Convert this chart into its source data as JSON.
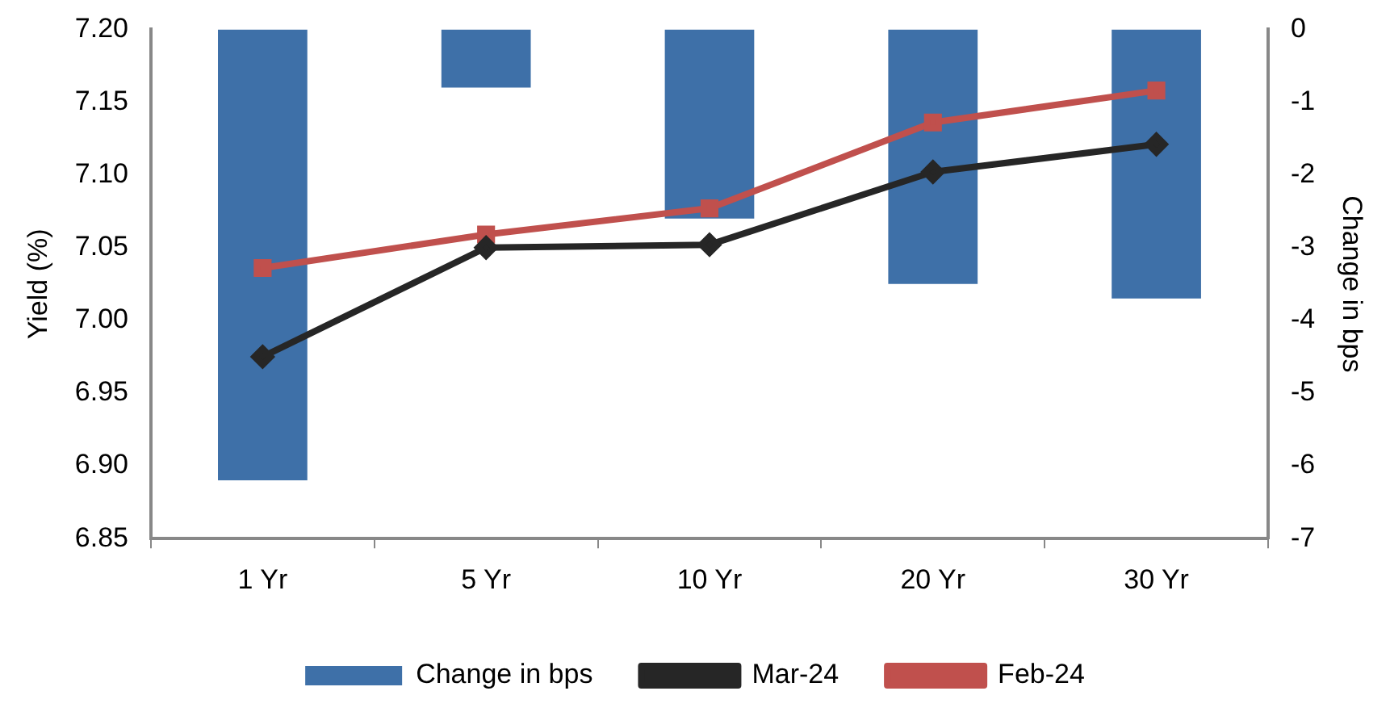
{
  "chart_data": {
    "type": "bar",
    "categories": [
      "1 Yr",
      "5 Yr",
      "10 Yr",
      "20 Yr",
      "30 Yr"
    ],
    "ylabel": "Yield (%)",
    "y2label": "Change in bps",
    "series": [
      {
        "name": "Change in bps",
        "axis": "y2",
        "color": "#3e70a8",
        "values": [
          -6.2,
          -0.8,
          -2.6,
          -3.5,
          -3.7
        ]
      },
      {
        "name": "Mar-24",
        "type": "line",
        "color": "#262626",
        "marker": "diamond",
        "values": [
          6.975,
          7.05,
          7.052,
          7.102,
          7.121
        ]
      },
      {
        "name": "Feb-24",
        "type": "line",
        "color": "#c0504d",
        "marker": "square",
        "values": [
          7.036,
          7.059,
          7.077,
          7.136,
          7.158
        ]
      }
    ],
    "ylim": [
      6.85,
      7.2
    ],
    "yticks": [
      {
        "value": 6.85,
        "label": "6.85"
      },
      {
        "value": 6.9,
        "label": "6.90"
      },
      {
        "value": 6.95,
        "label": "6.95"
      },
      {
        "value": 7.0,
        "label": "7.00"
      },
      {
        "value": 7.05,
        "label": "7.05"
      },
      {
        "value": 7.1,
        "label": "7.10"
      },
      {
        "value": 7.15,
        "label": "7.15"
      },
      {
        "value": 7.2,
        "label": "7.20"
      }
    ],
    "y2lim": [
      -7,
      0
    ],
    "y2ticks": [
      -7,
      -6,
      -5,
      -4,
      -3,
      -2,
      -1,
      0
    ],
    "grid": false,
    "legend": "bottom"
  }
}
